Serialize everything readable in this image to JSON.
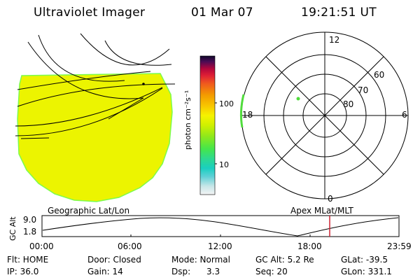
{
  "header": {
    "title": "Ultraviolet Imager",
    "date": "01 Mar 07",
    "time": "19:21:51 UT"
  },
  "colorbar": {
    "ticks": [
      "100",
      "10"
    ],
    "unit_label": "photon cm⁻²s⁻¹"
  },
  "polar": {
    "mlt_labels": [
      "12",
      "6",
      "0",
      "18"
    ],
    "lat_labels": [
      "60",
      "70",
      "80"
    ]
  },
  "timeline": {
    "left_label": "Geographic Lat/Lon",
    "right_label": "Apex MLat/MLT",
    "axis_title": "GC Alt",
    "y_ticks": [
      "9.0",
      "1.8"
    ],
    "x_ticks": [
      "00:00",
      "06:00",
      "12:00",
      "18:00",
      "23:59"
    ]
  },
  "info": [
    [
      "Flt: HOME",
      "IP: 36.0"
    ],
    [
      "Door: Closed",
      "Gain: 14"
    ],
    [
      "Mode: Normal",
      "Dsp:      3.3"
    ],
    [
      "GC Alt: 5.2 Re",
      "Seq: 20"
    ],
    [
      "GLat: -39.5",
      "GLon: 331.1"
    ]
  ],
  "colors": {
    "disk": "#ecf400",
    "disk_edge": "#7cfc4c",
    "marker": "#cc2233"
  }
}
